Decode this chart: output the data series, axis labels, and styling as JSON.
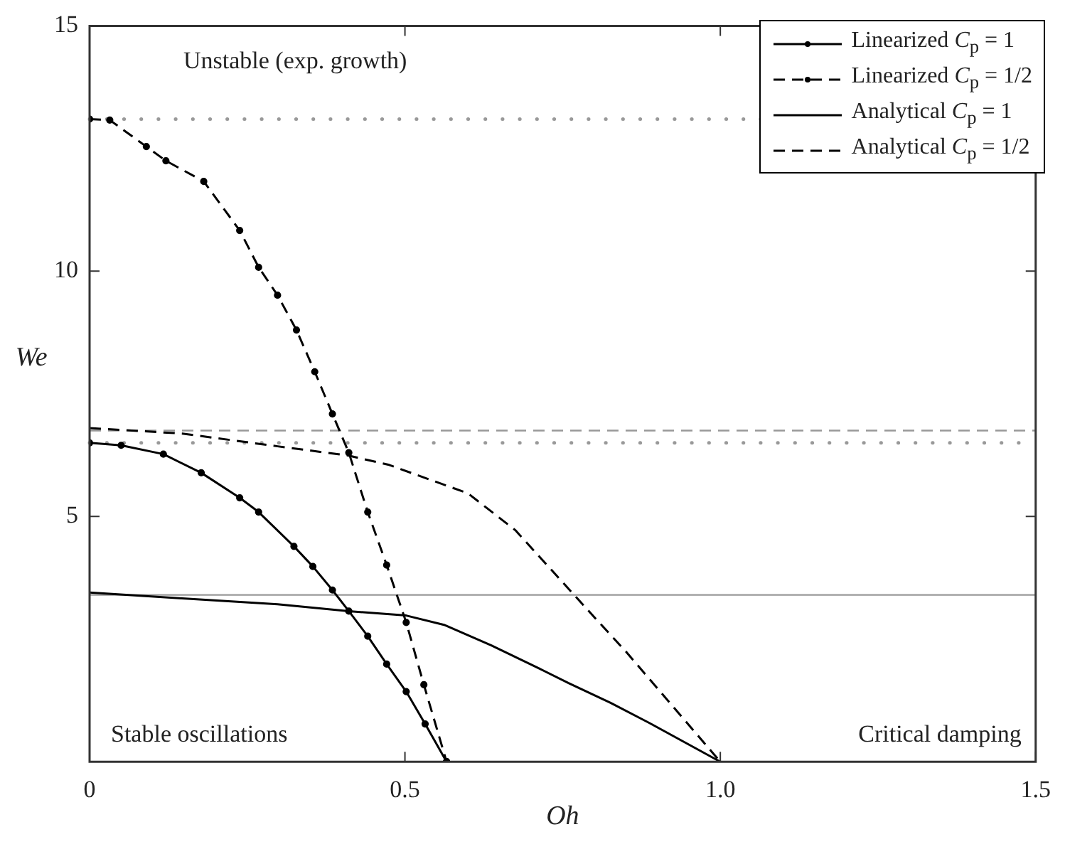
{
  "chart_data": {
    "type": "line",
    "xlabel": "Oh",
    "ylabel": "We",
    "xlim": [
      0,
      1.5
    ],
    "xticks": [
      0,
      0.5,
      {
        "value": 1,
        "label": "1.0"
      },
      1.5
    ],
    "ylim": [
      0,
      15
    ],
    "yticks": [
      5,
      10,
      15
    ],
    "grid": false,
    "legend": "top right",
    "series": [
      {
        "name": "Linearized C$_{p}$ = 1",
        "color": "#000000",
        "marker": "circle",
        "line_style": "solid",
        "x": [
          0,
          0.05,
          0.117,
          0.177,
          0.238,
          0.268,
          0.324,
          0.354,
          0.385,
          0.411,
          0.441,
          0.471,
          0.502,
          0.532,
          0.566
        ],
        "values": [
          6.5,
          6.45,
          6.27,
          5.89,
          5.38,
          5.09,
          4.39,
          3.98,
          3.5,
          3.07,
          2.56,
          1.99,
          1.43,
          0.77,
          0
        ]
      },
      {
        "name": "Linearized C$_{p}$ = 1/2",
        "color": "#000000",
        "marker": "circle",
        "line_style": "dashed",
        "x": [
          0,
          0.032,
          0.09,
          0.121,
          0.181,
          0.238,
          0.268,
          0.298,
          0.328,
          0.357,
          0.385,
          0.411,
          0.441,
          0.471,
          0.502,
          0.53,
          0.566
        ],
        "values": [
          13.1,
          13.08,
          12.54,
          12.25,
          11.83,
          10.83,
          10.08,
          9.51,
          8.8,
          7.95,
          7.09,
          6.3,
          5.09,
          4.01,
          2.84,
          1.57,
          0
        ]
      },
      {
        "name": "Analytical C$_{p}$ = 1",
        "color": "#000000",
        "marker": "none",
        "line_style": "solid",
        "x": [
          0,
          0.147,
          0.298,
          0.411,
          0.502,
          0.562,
          0.637,
          0.713,
          0.76,
          0.826,
          0.886,
          1.0
        ],
        "values": [
          3.45,
          3.33,
          3.21,
          3.07,
          2.98,
          2.79,
          2.37,
          1.9,
          1.6,
          1.2,
          0.8,
          0
        ]
      },
      {
        "name": "Analytical C$_{p}$ = 1/2",
        "color": "#000000",
        "marker": "none",
        "line_style": "dashed",
        "x": [
          0,
          0.147,
          0.298,
          0.411,
          0.475,
          0.6,
          0.675,
          0.74,
          0.8,
          0.85,
          0.92,
          1.0
        ],
        "values": [
          6.8,
          6.69,
          6.43,
          6.24,
          6.05,
          5.47,
          4.72,
          3.8,
          2.95,
          2.25,
          1.2,
          0
        ]
      }
    ],
    "ref_lines": [
      {
        "axis": "y",
        "value": 13.1,
        "color": "#999999",
        "line_style": "dotted"
      },
      {
        "axis": "y",
        "value": 6.75,
        "color": "#999999",
        "line_style": "dashed"
      },
      {
        "axis": "y",
        "value": 6.5,
        "color": "#999999",
        "line_style": "dotted"
      },
      {
        "axis": "y",
        "value": 3.4,
        "color": "#999999",
        "line_style": "solid"
      }
    ],
    "annotations": [
      "Unstable (exp. growth)",
      "Stable oscillations",
      "Critical damping"
    ]
  }
}
